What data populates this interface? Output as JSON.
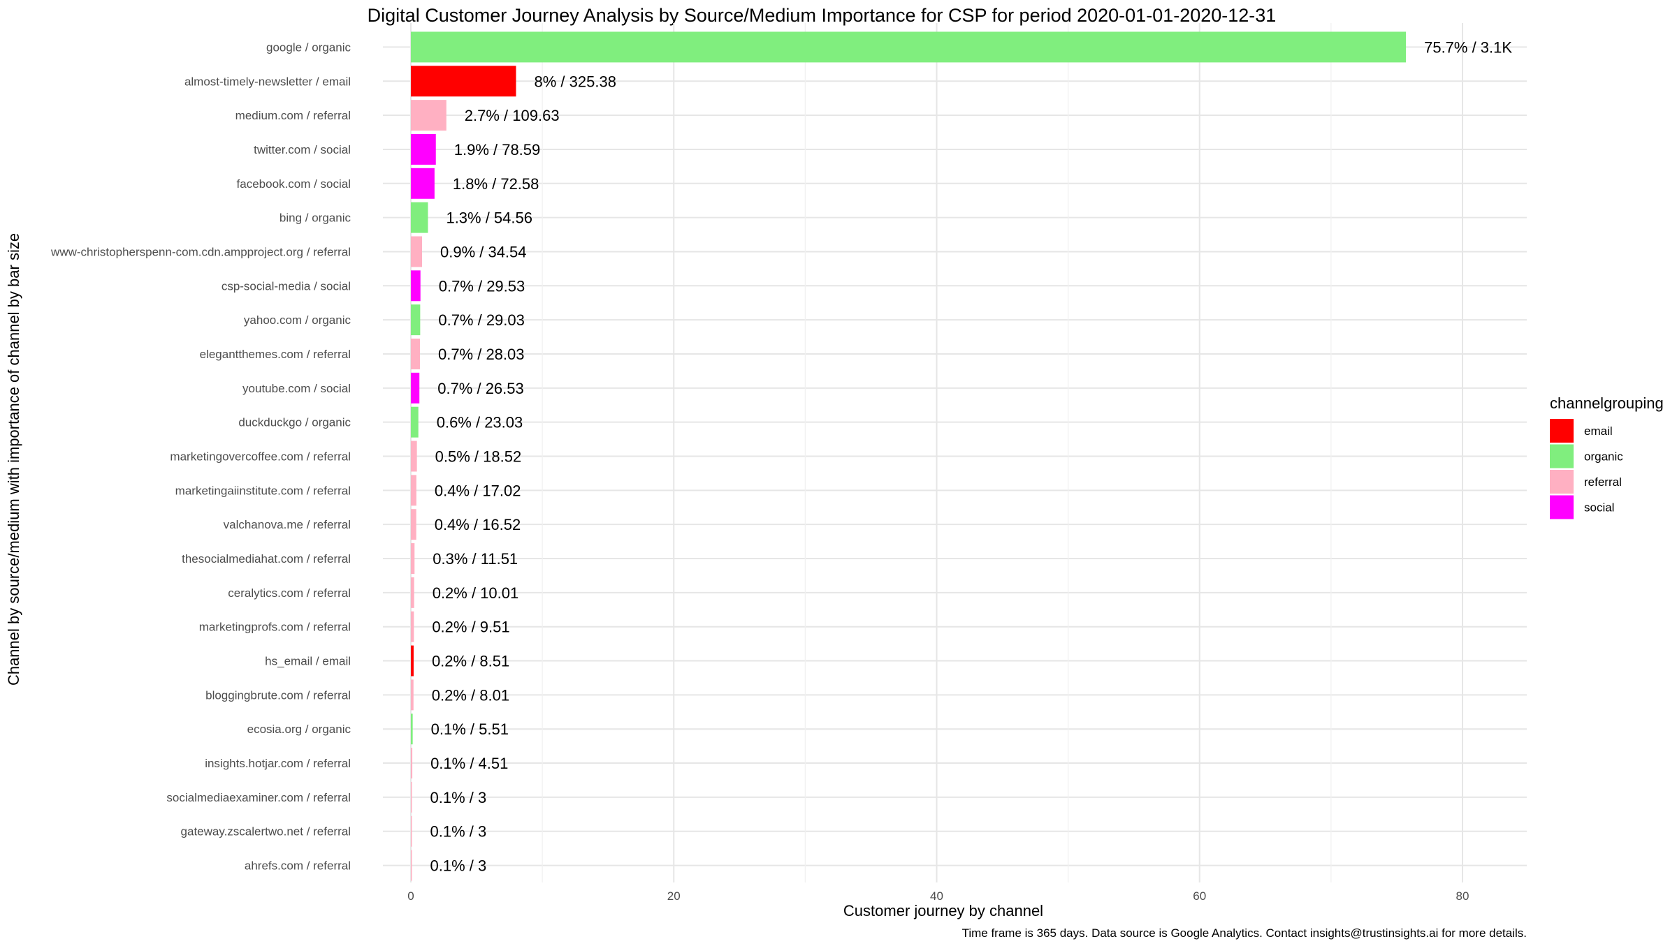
{
  "chart_data": {
    "type": "bar",
    "orientation": "horizontal",
    "title": "Digital Customer Journey Analysis by Source/Medium Importance for CSP for period 2020-01-01-2020-12-31",
    "xlabel": "Customer journey by channel",
    "ylabel": "Channel by source/medium with importance of channel by bar size",
    "caption": "Time frame is 365 days. Data source is Google Analytics. Contact insights@trustinsights.ai for more details.",
    "xlim": [
      0,
      85
    ],
    "xticks": [
      0,
      20,
      40,
      60,
      80
    ],
    "grid": true,
    "legend": {
      "title": "channelgrouping",
      "position": "right",
      "entries": [
        {
          "name": "email",
          "color": "#FF0000"
        },
        {
          "name": "organic",
          "color": "#80EE7E"
        },
        {
          "name": "referral",
          "color": "#FFB0C2"
        },
        {
          "name": "social",
          "color": "#FF00FF"
        }
      ]
    },
    "categories": [
      "google / organic",
      "almost-timely-newsletter / email",
      "medium.com / referral",
      "twitter.com / social",
      "facebook.com / social",
      "bing / organic",
      "www-christopherspenn-com.cdn.ampproject.org / referral",
      "csp-social-media / social",
      "yahoo.com / organic",
      "eleganttheme s.com / referral",
      "youtube.com / social",
      "duckduckgo / organic",
      "marketingovercoffee.com / referral",
      "marketingaiinstitute.com / referral",
      "valchanova.me / referral",
      "thesocialmediahat.com / referral",
      "ceralytics.com / referral",
      "marketingprofs.com / referral",
      "hs_email / email",
      "bloggingbrute.com / referral",
      "ecosia.org / organic",
      "insights.hotjar.com / referral",
      "socialmediaexaminer.com / referral",
      "gateway.zscalertwo.net / referral",
      "ahrefs.com / referral"
    ],
    "bars": [
      {
        "label": "google / organic",
        "group": "organic",
        "value": 75.7,
        "data_label": "75.7% / 3.1K"
      },
      {
        "label": "almost-timely-newsletter / email",
        "group": "email",
        "value": 8.0,
        "data_label": "8% / 325.38"
      },
      {
        "label": "medium.com / referral",
        "group": "referral",
        "value": 2.7,
        "data_label": "2.7% / 109.63"
      },
      {
        "label": "twitter.com / social",
        "group": "social",
        "value": 1.9,
        "data_label": "1.9% / 78.59"
      },
      {
        "label": "facebook.com / social",
        "group": "social",
        "value": 1.8,
        "data_label": "1.8% / 72.58"
      },
      {
        "label": "bing / organic",
        "group": "organic",
        "value": 1.3,
        "data_label": "1.3% / 54.56"
      },
      {
        "label": "www-christopherspenn-com.cdn.ampproject.org / referral",
        "group": "referral",
        "value": 0.85,
        "data_label": "0.9% / 34.54"
      },
      {
        "label": "csp-social-media / social",
        "group": "social",
        "value": 0.73,
        "data_label": "0.7% / 29.53"
      },
      {
        "label": "yahoo.com / organic",
        "group": "organic",
        "value": 0.71,
        "data_label": "0.7% / 29.03"
      },
      {
        "label": "elegantthemes.com / referral",
        "group": "referral",
        "value": 0.69,
        "data_label": "0.7% / 28.03"
      },
      {
        "label": "youtube.com / social",
        "group": "social",
        "value": 0.65,
        "data_label": "0.7% / 26.53"
      },
      {
        "label": "duckduckgo / organic",
        "group": "organic",
        "value": 0.57,
        "data_label": "0.6% / 23.03"
      },
      {
        "label": "marketingovercoffee.com / referral",
        "group": "referral",
        "value": 0.46,
        "data_label": "0.5% / 18.52"
      },
      {
        "label": "marketingaiinstitute.com / referral",
        "group": "referral",
        "value": 0.42,
        "data_label": "0.4% / 17.02"
      },
      {
        "label": "valchanova.me / referral",
        "group": "referral",
        "value": 0.41,
        "data_label": "0.4% / 16.52"
      },
      {
        "label": "thesocialmediahat.com / referral",
        "group": "referral",
        "value": 0.28,
        "data_label": "0.3% / 11.51"
      },
      {
        "label": "ceralytics.com / referral",
        "group": "referral",
        "value": 0.25,
        "data_label": "0.2% / 10.01"
      },
      {
        "label": "marketingprofs.com / referral",
        "group": "referral",
        "value": 0.23,
        "data_label": "0.2% / 9.51"
      },
      {
        "label": "hs_email / email",
        "group": "email",
        "value": 0.21,
        "data_label": "0.2% / 8.51"
      },
      {
        "label": "bloggingbrute.com / referral",
        "group": "referral",
        "value": 0.2,
        "data_label": "0.2% / 8.01"
      },
      {
        "label": "ecosia.org / organic",
        "group": "organic",
        "value": 0.14,
        "data_label": "0.1% / 5.51"
      },
      {
        "label": "insights.hotjar.com / referral",
        "group": "referral",
        "value": 0.11,
        "data_label": "0.1% / 4.51"
      },
      {
        "label": "socialmediaexaminer.com / referral",
        "group": "referral",
        "value": 0.07,
        "data_label": "0.1% / 3"
      },
      {
        "label": "gateway.zscalertwo.net / referral",
        "group": "referral",
        "value": 0.07,
        "data_label": "0.1% / 3"
      },
      {
        "label": "ahrefs.com / referral",
        "group": "referral",
        "value": 0.07,
        "data_label": "0.1% / 3"
      }
    ]
  }
}
